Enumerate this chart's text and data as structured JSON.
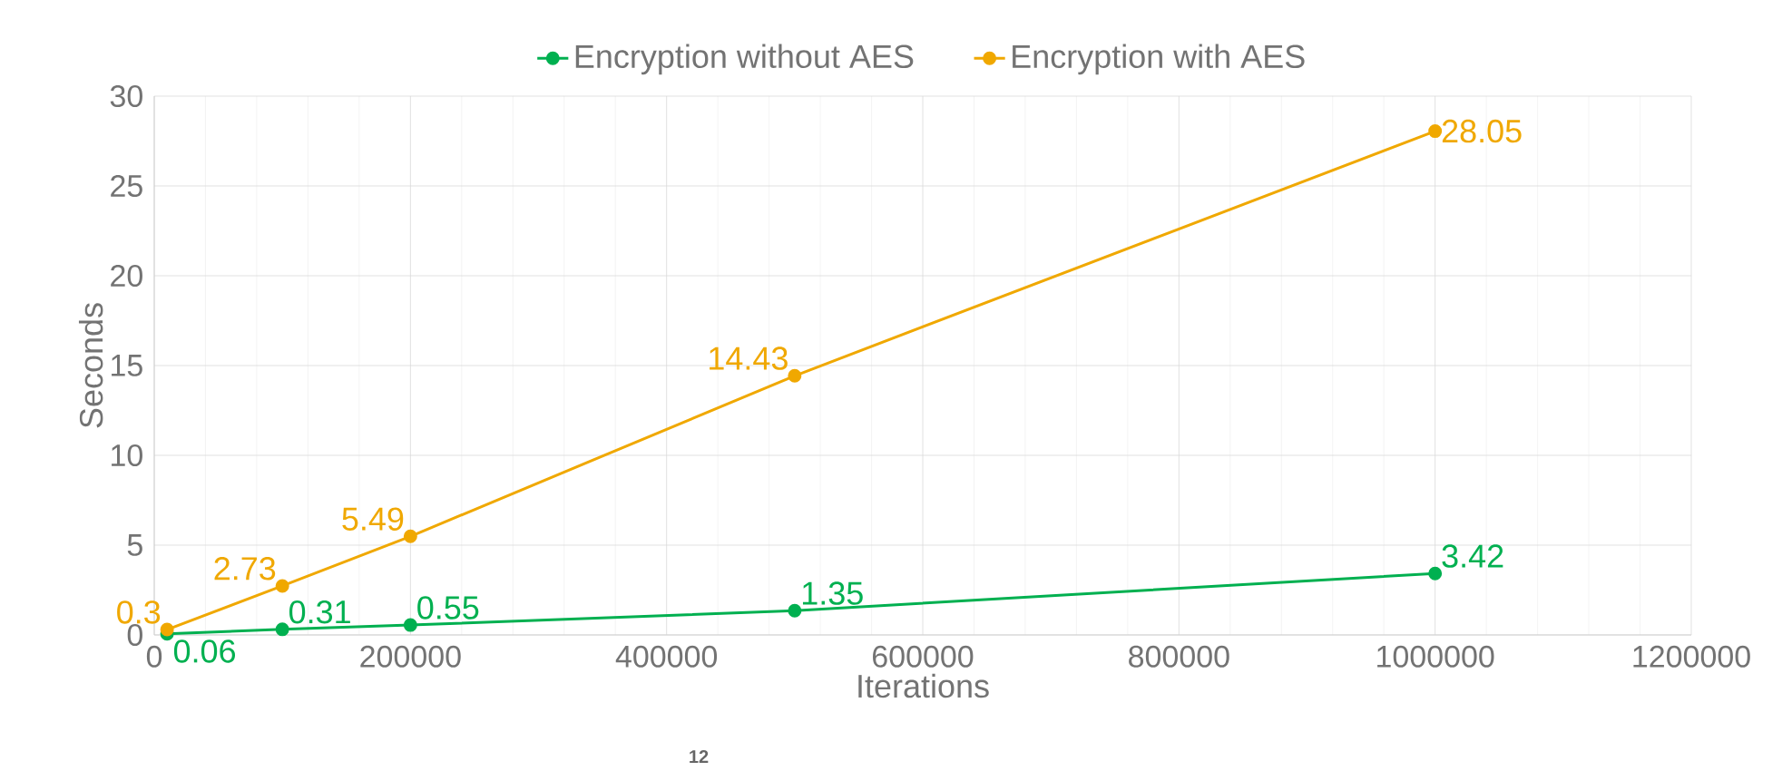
{
  "chart_data": {
    "type": "line",
    "xlabel": "Iterations",
    "ylabel": "Seconds",
    "x": [
      10000,
      100000,
      200000,
      500000,
      1000000
    ],
    "series": [
      {
        "name": "Encryption without AES",
        "color": "#00b050",
        "values": [
          0.06,
          0.31,
          0.55,
          1.35,
          3.42
        ]
      },
      {
        "name": "Encryption with AES",
        "color": "#f0a800",
        "values": [
          0.3,
          2.73,
          5.49,
          14.43,
          28.05
        ]
      }
    ],
    "xlim": [
      0,
      1200000
    ],
    "xticks": [
      0,
      200000,
      400000,
      600000,
      800000,
      1000000,
      1200000
    ],
    "ylim": [
      0,
      30
    ],
    "yticks": [
      0,
      5,
      10,
      15,
      20,
      25,
      30
    ],
    "grid": true,
    "legend": "top",
    "marker": "circle",
    "data_labels": true,
    "annotations": [
      "12"
    ]
  }
}
